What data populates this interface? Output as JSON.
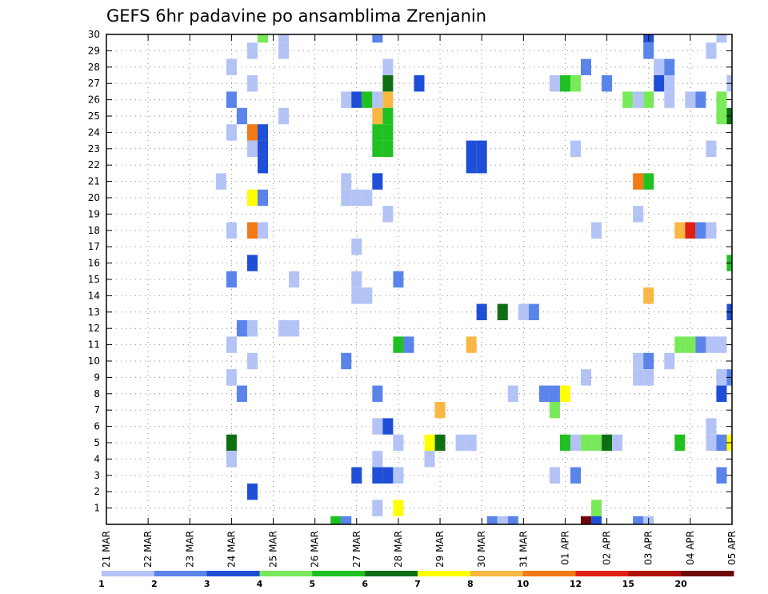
{
  "chart_data": {
    "type": "heatmap",
    "title": "GEFS 6hr padavine po ansamblima Zrenjanin",
    "x_tick_labels": [
      "21 MAR",
      "22 MAR",
      "23 MAR",
      "24 MAR",
      "25 MAR",
      "26 MAR",
      "27 MAR",
      "28 MAR",
      "29 MAR",
      "30 MAR",
      "31 MAR",
      "01 APR",
      "02 APR",
      "03 APR",
      "04 APR",
      "05 APR"
    ],
    "x_range_days": [
      0,
      15
    ],
    "x_step_days": 0.25,
    "y_tick_labels": [
      "1",
      "2",
      "3",
      "4",
      "5",
      "6",
      "7",
      "8",
      "9",
      "10",
      "11",
      "12",
      "13",
      "14",
      "15",
      "16",
      "17",
      "18",
      "19",
      "20",
      "21",
      "22",
      "23",
      "24",
      "25",
      "26",
      "27",
      "28",
      "29",
      "30"
    ],
    "y_range": [
      0,
      30
    ],
    "grid": true,
    "colorbar": {
      "labels": [
        "1",
        "2",
        "3",
        "4",
        "5",
        "6",
        "7",
        "8",
        "10",
        "12",
        "15",
        "20"
      ],
      "colors": [
        "#b4c3f5",
        "#5a84ea",
        "#1f4fd6",
        "#78ea5a",
        "#20c020",
        "#0f6e14",
        "#ffff00",
        "#f9b844",
        "#f37a14",
        "#e02014",
        "#b01008",
        "#6e0808"
      ]
    },
    "cells": [
      {
        "t": 3.75,
        "m": 30,
        "c": 3
      },
      {
        "t": 4.25,
        "m": 30,
        "c": 0
      },
      {
        "t": 6.5,
        "m": 30,
        "c": 1
      },
      {
        "t": 13.0,
        "m": 30,
        "c": 2
      },
      {
        "t": 14.75,
        "m": 30,
        "c": 0
      },
      {
        "t": 3.5,
        "m": 29,
        "c": 0
      },
      {
        "t": 4.25,
        "m": 29,
        "c": 0
      },
      {
        "t": 13.0,
        "m": 29,
        "c": 1
      },
      {
        "t": 14.5,
        "m": 29,
        "c": 0
      },
      {
        "t": 3.0,
        "m": 28,
        "c": 0
      },
      {
        "t": 6.75,
        "m": 28,
        "c": 0
      },
      {
        "t": 11.5,
        "m": 28,
        "c": 1
      },
      {
        "t": 13.25,
        "m": 28,
        "c": 0
      },
      {
        "t": 13.5,
        "m": 28,
        "c": 1
      },
      {
        "t": 3.5,
        "m": 27,
        "c": 0
      },
      {
        "t": 6.75,
        "m": 27,
        "c": 5
      },
      {
        "t": 7.5,
        "m": 27,
        "c": 2
      },
      {
        "t": 10.75,
        "m": 27,
        "c": 0
      },
      {
        "t": 11.0,
        "m": 27,
        "c": 4
      },
      {
        "t": 11.25,
        "m": 27,
        "c": 3
      },
      {
        "t": 12.0,
        "m": 27,
        "c": 1
      },
      {
        "t": 13.25,
        "m": 27,
        "c": 2
      },
      {
        "t": 13.5,
        "m": 27,
        "c": 0
      },
      {
        "t": 15.0,
        "m": 27,
        "c": 0
      },
      {
        "t": 3.0,
        "m": 26,
        "c": 1
      },
      {
        "t": 5.75,
        "m": 26,
        "c": 0
      },
      {
        "t": 6.0,
        "m": 26,
        "c": 2
      },
      {
        "t": 6.25,
        "m": 26,
        "c": 4
      },
      {
        "t": 6.5,
        "m": 26,
        "c": 0
      },
      {
        "t": 6.75,
        "m": 26,
        "c": 7
      },
      {
        "t": 12.5,
        "m": 26,
        "c": 3
      },
      {
        "t": 12.75,
        "m": 26,
        "c": 0
      },
      {
        "t": 13.0,
        "m": 26,
        "c": 3
      },
      {
        "t": 13.5,
        "m": 26,
        "c": 0
      },
      {
        "t": 14.0,
        "m": 26,
        "c": 0
      },
      {
        "t": 14.25,
        "m": 26,
        "c": 1
      },
      {
        "t": 14.75,
        "m": 26,
        "c": 3
      },
      {
        "t": 3.25,
        "m": 25,
        "c": 1
      },
      {
        "t": 4.25,
        "m": 25,
        "c": 0
      },
      {
        "t": 6.5,
        "m": 25,
        "c": 7
      },
      {
        "t": 6.75,
        "m": 25,
        "c": 4
      },
      {
        "t": 14.75,
        "m": 25,
        "c": 3
      },
      {
        "t": 15.0,
        "m": 25,
        "c": 5
      },
      {
        "t": 3.0,
        "m": 24,
        "c": 0
      },
      {
        "t": 3.5,
        "m": 24,
        "c": 8
      },
      {
        "t": 3.75,
        "m": 24,
        "c": 2
      },
      {
        "t": 6.5,
        "m": 24,
        "c": 4
      },
      {
        "t": 6.75,
        "m": 24,
        "c": 4
      },
      {
        "t": 3.5,
        "m": 23,
        "c": 0
      },
      {
        "t": 3.75,
        "m": 23,
        "c": 2
      },
      {
        "t": 6.5,
        "m": 23,
        "c": 4
      },
      {
        "t": 6.75,
        "m": 23,
        "c": 4
      },
      {
        "t": 8.75,
        "m": 23,
        "c": 2
      },
      {
        "t": 9.0,
        "m": 23,
        "c": 2
      },
      {
        "t": 11.25,
        "m": 23,
        "c": 0
      },
      {
        "t": 14.5,
        "m": 23,
        "c": 0
      },
      {
        "t": 3.75,
        "m": 22,
        "c": 2
      },
      {
        "t": 8.75,
        "m": 22,
        "c": 2
      },
      {
        "t": 9.0,
        "m": 22,
        "c": 2
      },
      {
        "t": 2.75,
        "m": 21,
        "c": 0
      },
      {
        "t": 5.75,
        "m": 21,
        "c": 0
      },
      {
        "t": 6.5,
        "m": 21,
        "c": 2
      },
      {
        "t": 12.75,
        "m": 21,
        "c": 8
      },
      {
        "t": 13.0,
        "m": 21,
        "c": 4
      },
      {
        "t": 3.5,
        "m": 20,
        "c": 6
      },
      {
        "t": 3.75,
        "m": 20,
        "c": 1
      },
      {
        "t": 5.75,
        "m": 20,
        "c": 0
      },
      {
        "t": 6.0,
        "m": 20,
        "c": 0
      },
      {
        "t": 6.25,
        "m": 20,
        "c": 0
      },
      {
        "t": 6.75,
        "m": 19,
        "c": 0
      },
      {
        "t": 12.75,
        "m": 19,
        "c": 0
      },
      {
        "t": 3.0,
        "m": 18,
        "c": 0
      },
      {
        "t": 3.5,
        "m": 18,
        "c": 8
      },
      {
        "t": 3.75,
        "m": 18,
        "c": 0
      },
      {
        "t": 11.75,
        "m": 18,
        "c": 0
      },
      {
        "t": 13.75,
        "m": 18,
        "c": 7
      },
      {
        "t": 14.0,
        "m": 18,
        "c": 9
      },
      {
        "t": 14.25,
        "m": 18,
        "c": 1
      },
      {
        "t": 14.5,
        "m": 18,
        "c": 0
      },
      {
        "t": 6.0,
        "m": 17,
        "c": 0
      },
      {
        "t": 3.5,
        "m": 16,
        "c": 2
      },
      {
        "t": 15.0,
        "m": 16,
        "c": 4
      },
      {
        "t": 3.0,
        "m": 15,
        "c": 1
      },
      {
        "t": 4.5,
        "m": 15,
        "c": 0
      },
      {
        "t": 6.0,
        "m": 15,
        "c": 0
      },
      {
        "t": 7.0,
        "m": 15,
        "c": 1
      },
      {
        "t": 6.0,
        "m": 14,
        "c": 0
      },
      {
        "t": 6.25,
        "m": 14,
        "c": 0
      },
      {
        "t": 13.0,
        "m": 14,
        "c": 7
      },
      {
        "t": 9.0,
        "m": 13,
        "c": 2
      },
      {
        "t": 9.5,
        "m": 13,
        "c": 5
      },
      {
        "t": 10.0,
        "m": 13,
        "c": 0
      },
      {
        "t": 10.25,
        "m": 13,
        "c": 1
      },
      {
        "t": 15.0,
        "m": 13,
        "c": 2
      },
      {
        "t": 3.25,
        "m": 12,
        "c": 1
      },
      {
        "t": 3.5,
        "m": 12,
        "c": 0
      },
      {
        "t": 4.25,
        "m": 12,
        "c": 0
      },
      {
        "t": 4.5,
        "m": 12,
        "c": 0
      },
      {
        "t": 3.0,
        "m": 11,
        "c": 0
      },
      {
        "t": 7.0,
        "m": 11,
        "c": 4
      },
      {
        "t": 7.25,
        "m": 11,
        "c": 1
      },
      {
        "t": 8.75,
        "m": 11,
        "c": 7
      },
      {
        "t": 13.75,
        "m": 11,
        "c": 3
      },
      {
        "t": 14.0,
        "m": 11,
        "c": 3
      },
      {
        "t": 14.25,
        "m": 11,
        "c": 1
      },
      {
        "t": 14.5,
        "m": 11,
        "c": 0
      },
      {
        "t": 14.75,
        "m": 11,
        "c": 0
      },
      {
        "t": 3.5,
        "m": 10,
        "c": 0
      },
      {
        "t": 5.75,
        "m": 10,
        "c": 1
      },
      {
        "t": 12.75,
        "m": 10,
        "c": 0
      },
      {
        "t": 13.0,
        "m": 10,
        "c": 1
      },
      {
        "t": 13.5,
        "m": 10,
        "c": 0
      },
      {
        "t": 3.0,
        "m": 9,
        "c": 0
      },
      {
        "t": 11.5,
        "m": 9,
        "c": 0
      },
      {
        "t": 12.75,
        "m": 9,
        "c": 0
      },
      {
        "t": 13.0,
        "m": 9,
        "c": 0
      },
      {
        "t": 14.75,
        "m": 9,
        "c": 0
      },
      {
        "t": 15.0,
        "m": 9,
        "c": 1
      },
      {
        "t": 3.25,
        "m": 8,
        "c": 1
      },
      {
        "t": 6.5,
        "m": 8,
        "c": 1
      },
      {
        "t": 9.75,
        "m": 8,
        "c": 0
      },
      {
        "t": 10.5,
        "m": 8,
        "c": 1
      },
      {
        "t": 10.75,
        "m": 8,
        "c": 1
      },
      {
        "t": 11.0,
        "m": 8,
        "c": 6
      },
      {
        "t": 14.75,
        "m": 8,
        "c": 2
      },
      {
        "t": 8.0,
        "m": 7,
        "c": 7
      },
      {
        "t": 10.75,
        "m": 7,
        "c": 3
      },
      {
        "t": 6.5,
        "m": 6,
        "c": 0
      },
      {
        "t": 6.75,
        "m": 6,
        "c": 2
      },
      {
        "t": 14.5,
        "m": 6,
        "c": 0
      },
      {
        "t": 3.0,
        "m": 5,
        "c": 5
      },
      {
        "t": 7.0,
        "m": 5,
        "c": 0
      },
      {
        "t": 7.75,
        "m": 5,
        "c": 6
      },
      {
        "t": 8.0,
        "m": 5,
        "c": 5
      },
      {
        "t": 8.5,
        "m": 5,
        "c": 0
      },
      {
        "t": 8.75,
        "m": 5,
        "c": 0
      },
      {
        "t": 11.0,
        "m": 5,
        "c": 4
      },
      {
        "t": 11.25,
        "m": 5,
        "c": 0
      },
      {
        "t": 11.5,
        "m": 5,
        "c": 3
      },
      {
        "t": 11.75,
        "m": 5,
        "c": 3
      },
      {
        "t": 12.0,
        "m": 5,
        "c": 5
      },
      {
        "t": 12.25,
        "m": 5,
        "c": 0
      },
      {
        "t": 13.75,
        "m": 5,
        "c": 4
      },
      {
        "t": 14.5,
        "m": 5,
        "c": 0
      },
      {
        "t": 14.75,
        "m": 5,
        "c": 1
      },
      {
        "t": 15.0,
        "m": 5,
        "c": 6
      },
      {
        "t": 3.0,
        "m": 4,
        "c": 0
      },
      {
        "t": 6.5,
        "m": 4,
        "c": 0
      },
      {
        "t": 7.75,
        "m": 4,
        "c": 0
      },
      {
        "t": 6.0,
        "m": 3,
        "c": 2
      },
      {
        "t": 6.5,
        "m": 3,
        "c": 2
      },
      {
        "t": 6.75,
        "m": 3,
        "c": 2
      },
      {
        "t": 7.0,
        "m": 3,
        "c": 0
      },
      {
        "t": 10.75,
        "m": 3,
        "c": 0
      },
      {
        "t": 11.25,
        "m": 3,
        "c": 1
      },
      {
        "t": 14.75,
        "m": 3,
        "c": 1
      },
      {
        "t": 3.5,
        "m": 2,
        "c": 2
      },
      {
        "t": 6.5,
        "m": 1,
        "c": 0
      },
      {
        "t": 7.0,
        "m": 1,
        "c": 6
      },
      {
        "t": 11.75,
        "m": 1,
        "c": 3
      },
      {
        "t": 5.5,
        "m": 0,
        "c": 4
      },
      {
        "t": 5.75,
        "m": 0,
        "c": 1
      },
      {
        "t": 9.25,
        "m": 0,
        "c": 1
      },
      {
        "t": 9.5,
        "m": 0,
        "c": 0
      },
      {
        "t": 9.75,
        "m": 0,
        "c": 1
      },
      {
        "t": 11.5,
        "m": 0,
        "c": 11
      },
      {
        "t": 11.75,
        "m": 0,
        "c": 2
      },
      {
        "t": 12.75,
        "m": 0,
        "c": 1
      },
      {
        "t": 13.0,
        "m": 0,
        "c": 0
      }
    ]
  }
}
